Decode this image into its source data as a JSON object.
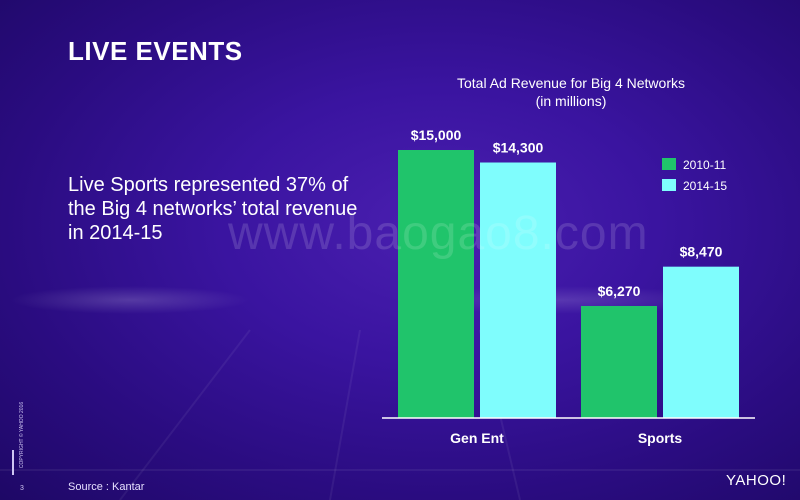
{
  "slide": {
    "title": "LIVE EVENTS",
    "body_text": "Live Sports represented 37% of the Big 4 networks’ total revenue in 2014-15",
    "watermark": "www.baogao8.com",
    "source": "Source : Kantar",
    "page_number": "3",
    "copyright": "COPYRIGHT © YAHOO 2016",
    "logo": "YAHOO!"
  },
  "colors": {
    "series_2010": "#20c46b",
    "series_2014": "#7ffdfd"
  },
  "chart_data": {
    "type": "bar",
    "title": "Total Ad Revenue for Big 4 Networks",
    "subtitle": "(in millions)",
    "categories": [
      "Gen Ent",
      "Sports"
    ],
    "series": [
      {
        "name": "2010-11",
        "values": [
          15000,
          6270
        ],
        "labels": [
          "$15,000",
          "$6,270"
        ]
      },
      {
        "name": "2014-15",
        "values": [
          14300,
          8470
        ],
        "labels": [
          "$14,300",
          "$8,470"
        ]
      }
    ],
    "ylim": [
      0,
      15000
    ],
    "grid": false,
    "legend_position": "top-right"
  }
}
